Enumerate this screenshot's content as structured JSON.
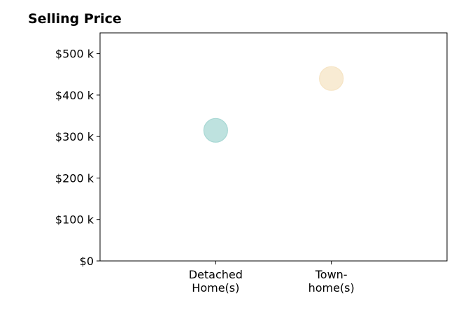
{
  "chart_data": {
    "type": "scatter",
    "title": "Selling Price",
    "xlabel": "",
    "ylabel": "",
    "categories": [
      "Detached\nHome(s)",
      "Town-\nhome(s)"
    ],
    "points": [
      {
        "category": "Detached\nHome(s)",
        "value": 315000,
        "color": "#a8d8d4"
      },
      {
        "category": "Town-\nhome(s)",
        "value": 440000,
        "color": "#f6e4c4"
      }
    ],
    "yticks": [
      {
        "value": 0,
        "label": "$0"
      },
      {
        "value": 100000,
        "label": "$100 k"
      },
      {
        "value": 200000,
        "label": "$200 k"
      },
      {
        "value": 300000,
        "label": "$300 k"
      },
      {
        "value": 400000,
        "label": "$400 k"
      },
      {
        "value": 500000,
        "label": "$500 k"
      }
    ],
    "ylim": [
      0,
      550000
    ],
    "grid": false,
    "legend": "none"
  }
}
